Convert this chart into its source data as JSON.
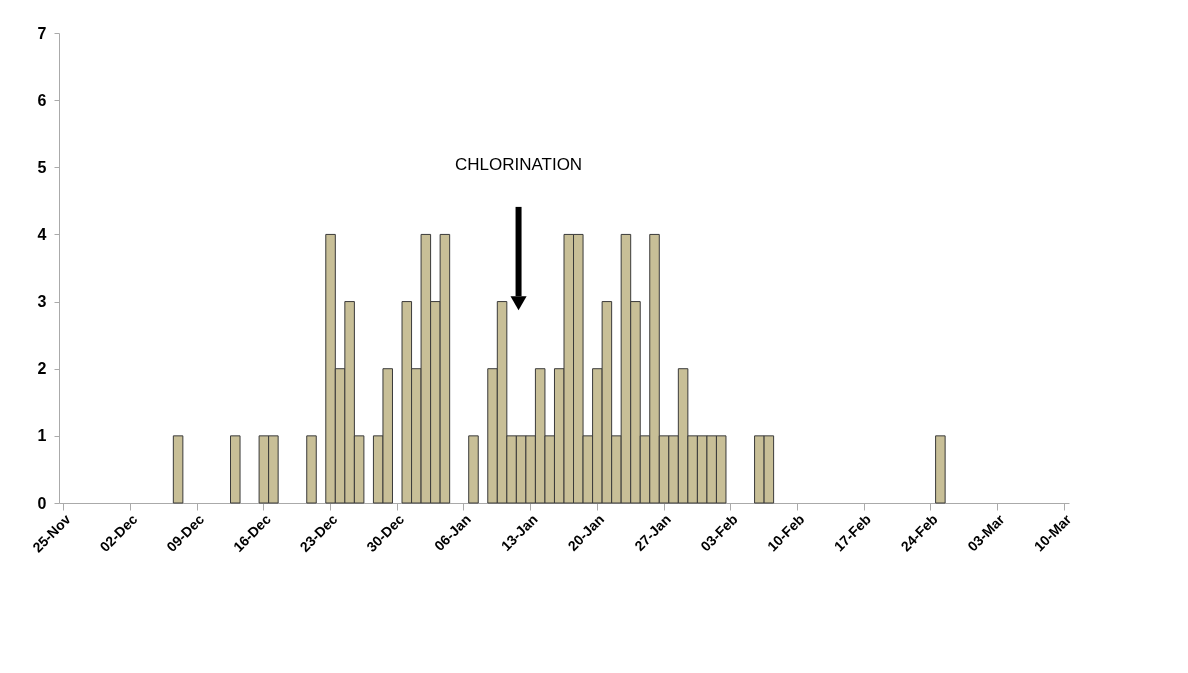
{
  "chart_data": {
    "type": "bar",
    "categories": [
      "25-Nov",
      null,
      null,
      null,
      null,
      null,
      null,
      "02-Dec",
      null,
      null,
      null,
      null,
      null,
      null,
      "09-Dec",
      null,
      null,
      null,
      null,
      null,
      null,
      "16-Dec",
      null,
      null,
      null,
      null,
      null,
      null,
      "23-Dec",
      null,
      null,
      null,
      null,
      null,
      null,
      "30-Dec",
      null,
      null,
      null,
      null,
      null,
      null,
      "06-Jan",
      null,
      null,
      null,
      null,
      null,
      null,
      "13-Jan",
      null,
      null,
      null,
      null,
      null,
      null,
      "20-Jan",
      null,
      null,
      null,
      null,
      null,
      null,
      "27-Jan",
      null,
      null,
      null,
      null,
      null,
      null,
      "03-Feb",
      null,
      null,
      null,
      null,
      null,
      null,
      "10-Feb",
      null,
      null,
      null,
      null,
      null,
      null,
      "17-Feb",
      null,
      null,
      null,
      null,
      null,
      null,
      "24-Feb",
      null,
      null,
      null,
      null,
      null,
      null,
      "03-Mar",
      null,
      null,
      null,
      null,
      null,
      null,
      "10-Mar"
    ],
    "values": [
      null,
      null,
      null,
      null,
      null,
      null,
      null,
      null,
      null,
      null,
      null,
      null,
      1,
      null,
      null,
      null,
      null,
      null,
      1,
      null,
      null,
      1,
      1,
      null,
      null,
      null,
      1,
      null,
      4,
      2,
      3,
      1,
      null,
      1,
      2,
      null,
      3,
      2,
      4,
      3,
      4,
      null,
      null,
      1,
      null,
      2,
      3,
      1,
      1,
      1,
      2,
      1,
      2,
      4,
      4,
      1,
      2,
      3,
      1,
      4,
      3,
      1,
      4,
      1,
      1,
      2,
      1,
      1,
      1,
      1,
      null,
      null,
      null,
      1,
      1,
      null,
      null,
      null,
      null,
      null,
      null,
      null,
      null,
      null,
      null,
      null,
      null,
      null,
      null,
      null,
      null,
      null,
      1,
      null,
      null,
      null,
      null,
      null,
      null,
      null,
      null,
      null,
      null,
      null,
      null,
      null
    ],
    "color": "#c8bf97",
    "ylim": [
      0,
      7
    ],
    "yticks": [
      0,
      1,
      2,
      3,
      4,
      5,
      6,
      7
    ],
    "grid": false,
    "annotations": [
      "CHLORINATION"
    ]
  }
}
